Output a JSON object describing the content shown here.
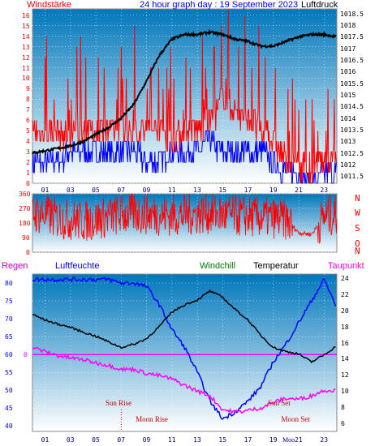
{
  "header": {
    "left_title": "Windstärke",
    "center_title": "24 hour graph day : 19 September 2023",
    "right_title": "Luftdruck"
  },
  "colors": {
    "wind": "#ff0000",
    "gust": "#0000ff",
    "pressure": "#000000",
    "humidity": "#0000ff",
    "windchill": "#008000",
    "temperature": "#000000",
    "dewpoint": "#ff00ff",
    "rain": "#ff00ff",
    "bg_top": "#0077bb",
    "bg_bottom": "#ffffff"
  },
  "x_ticks": [
    "01",
    "03",
    "05",
    "07",
    "09",
    "11",
    "13",
    "15",
    "17",
    "19",
    "21",
    "23"
  ],
  "chart_data": [
    {
      "type": "line",
      "panel": "wind_pressure",
      "x": [
        0,
        1,
        2,
        3,
        4,
        5,
        6,
        7,
        8,
        9,
        10,
        11,
        12,
        13,
        14,
        15,
        16,
        17,
        18,
        19,
        20,
        21,
        22,
        23,
        24
      ],
      "y_left_ticks": [
        "0",
        "1",
        "2",
        "3",
        "4",
        "5",
        "6",
        "7",
        "8",
        "9",
        "10",
        "11",
        "12",
        "13",
        "14",
        "15",
        "16"
      ],
      "y_right_ticks": [
        "1011.5",
        "1012",
        "1012.5",
        "1013",
        "1013.5",
        "1014",
        "1014.5",
        "1015",
        "1015.5",
        "1016",
        "1016.5",
        "1017",
        "1017.5",
        "1018",
        "1018.5"
      ],
      "ylim_left": [
        0,
        16.6
      ],
      "ylim_right": [
        1011.2,
        1018.7
      ],
      "series": [
        {
          "name": "Luftdruck",
          "axis": "right",
          "values": [
            1012.5,
            1012.6,
            1012.7,
            1012.8,
            1013.0,
            1013.3,
            1013.6,
            1014.0,
            1014.6,
            1015.6,
            1016.7,
            1017.4,
            1017.6,
            1017.6,
            1017.7,
            1017.6,
            1017.4,
            1017.3,
            1017.1,
            1017.1,
            1017.3,
            1017.5,
            1017.6,
            1017.6,
            1017.5
          ]
        },
        {
          "name": "Windstärke",
          "axis": "left",
          "values": [
            5,
            5,
            5,
            4,
            5,
            5,
            5,
            5,
            5,
            5,
            5,
            4,
            5,
            5,
            6,
            8,
            7,
            6,
            5,
            4,
            2,
            2,
            1,
            2,
            3
          ]
        },
        {
          "name": "Böen",
          "axis": "left",
          "values": [
            2,
            2,
            2,
            3,
            3,
            3,
            3,
            3,
            3,
            2,
            2,
            3,
            3,
            3,
            4,
            3,
            3,
            3,
            3,
            2,
            1,
            1,
            0,
            1,
            1
          ]
        }
      ]
    },
    {
      "type": "scatter",
      "panel": "wind_direction",
      "y_ticks": [
        "360",
        "270",
        "180",
        "90",
        "0"
      ],
      "right_labels": [
        "N",
        "W",
        "S",
        "O",
        "N"
      ],
      "ylim": [
        0,
        360
      ],
      "series": [
        {
          "name": "Windrichtung",
          "values": [
            240,
            230,
            210,
            200,
            190,
            200,
            220,
            230,
            240,
            235,
            230,
            225,
            230,
            235,
            240,
            230,
            225,
            220,
            215,
            210,
            200,
            120,
            110,
            220,
            230
          ]
        }
      ]
    },
    {
      "type": "line",
      "panel": "temp_humidity",
      "y_left_ticks": [
        "40",
        "45",
        "50",
        "55",
        "60",
        "65",
        "70",
        "75",
        "80"
      ],
      "y_right_ticks": [
        "6",
        "8",
        "10",
        "12",
        "14",
        "16",
        "18",
        "20",
        "22",
        "24"
      ],
      "ylim_left": [
        38.5,
        82.5
      ],
      "ylim_right": [
        5,
        24.5
      ],
      "rain_zero_label": "0",
      "series": [
        {
          "name": "Luftfeuchte",
          "axis": "left",
          "values": [
            81,
            81,
            81,
            81,
            81,
            81,
            81,
            80,
            80,
            79,
            74,
            67,
            62,
            55,
            47,
            42,
            44,
            47,
            51,
            58,
            63,
            69,
            75,
            81,
            73
          ]
        },
        {
          "name": "Temperatur",
          "axis": "right",
          "values": [
            19.5,
            18.8,
            18.3,
            17.9,
            17.3,
            16.8,
            16.1,
            15.4,
            15.8,
            16.5,
            18.0,
            19.8,
            20.7,
            21.3,
            22.4,
            21.6,
            20.1,
            18.8,
            16.9,
            15.4,
            14.9,
            14.6,
            13.6,
            14.5,
            15.6
          ]
        },
        {
          "name": "Taupunkt",
          "axis": "right",
          "values": [
            15.4,
            14.9,
            14.4,
            14.1,
            13.9,
            13.5,
            13.2,
            12.7,
            12.7,
            12.2,
            11.9,
            11.5,
            10.7,
            10.0,
            9.4,
            7.7,
            7.4,
            7.6,
            7.9,
            8.6,
            9.1,
            9.0,
            9.4,
            10.1,
            10.1
          ]
        }
      ],
      "annotations": {
        "sun_rise": "Sun Rise",
        "moon_rise": "Moon Rise",
        "sun_set": "Sun Set",
        "moon_set": "Moon Set",
        "moon_set_short": "Moo"
      },
      "annotation_hours": {
        "sun_rise": 7.0,
        "moon_rise": 9.0,
        "sun_set": 19.5,
        "moon_set": 19.0
      }
    }
  ],
  "bottom_panel": {
    "regen": "Regen",
    "luftfeuchte": "Luftfeuchte",
    "windchill": "Windchill",
    "temperatur": "Temperatur",
    "taupunkt": "Taupunkt"
  }
}
